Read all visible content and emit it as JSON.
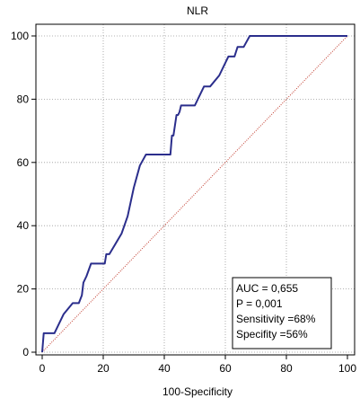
{
  "chart_data": {
    "type": "line",
    "title": "NLR",
    "xlabel": "100-Specificity",
    "ylabel": "",
    "xlim": [
      0,
      100
    ],
    "ylim": [
      0,
      100
    ],
    "xticks": [
      0,
      20,
      40,
      60,
      80,
      100
    ],
    "yticks": [
      0,
      20,
      40,
      60,
      80,
      100
    ],
    "grid": true,
    "series": [
      {
        "name": "",
        "color": "#2b2e8c",
        "x": [
          0,
          0.5,
          4,
          7,
          10,
          12,
          13,
          13.5,
          14.5,
          16,
          18,
          20.5,
          21,
          22,
          26,
          28,
          30,
          32,
          34,
          36,
          37,
          38,
          42,
          42.5,
          43,
          44,
          44.5,
          45,
          45.5,
          48,
          50,
          53,
          55,
          58,
          61,
          63,
          64,
          65,
          66,
          68,
          72,
          74,
          75,
          76,
          90,
          100
        ],
        "y": [
          0,
          6,
          6,
          12,
          15.5,
          15.5,
          18,
          22,
          24,
          28,
          28,
          28,
          31,
          31,
          37.5,
          43,
          52,
          59,
          62.5,
          62.5,
          62.5,
          62.5,
          62.5,
          68.5,
          68.5,
          75,
          75,
          76,
          78,
          78,
          78,
          84,
          84,
          87.5,
          93.5,
          93.5,
          96.5,
          96.5,
          96.5,
          100,
          100,
          100,
          100,
          100,
          100,
          100
        ]
      }
    ],
    "reference_line": {
      "color": "#c0392b",
      "style": "dotted"
    },
    "annotation_box": {
      "lines": [
        "AUC = 0,655",
        "P = 0,001",
        "Sensitivity =68%",
        "Specifity =56%"
      ]
    }
  }
}
